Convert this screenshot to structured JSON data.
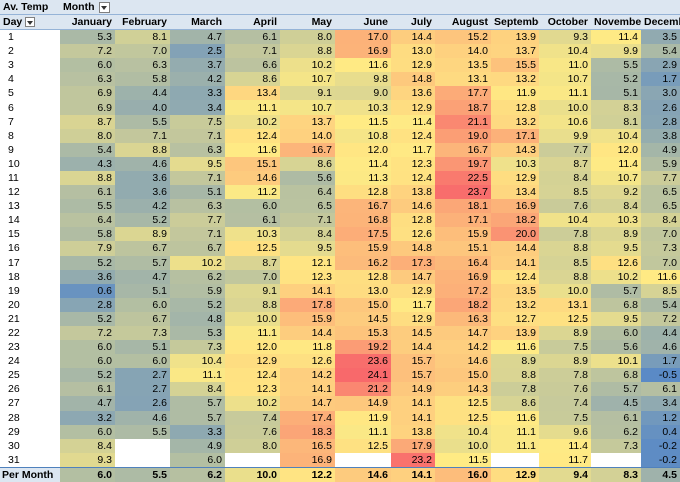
{
  "pivot": {
    "corner_label": "Av. Temp",
    "column_field_label": "Month",
    "row_field_label": "Day",
    "total_label": "Per Month",
    "months": [
      "January",
      "February",
      "March",
      "April",
      "May",
      "June",
      "July",
      "August",
      "September",
      "October",
      "November",
      "December"
    ],
    "days": [
      "1",
      "2",
      "3",
      "4",
      "5",
      "6",
      "7",
      "8",
      "9",
      "10",
      "11",
      "12",
      "13",
      "14",
      "15",
      "16",
      "17",
      "18",
      "19",
      "20",
      "21",
      "22",
      "23",
      "24",
      "25",
      "26",
      "27",
      "28",
      "29",
      "30",
      "31"
    ],
    "values": [
      [
        "5.3",
        "8.1",
        "4.7",
        "6.1",
        "8.0",
        "17.0",
        "14.4",
        "15.2",
        "13.9",
        "9.3",
        "11.4",
        "3.5"
      ],
      [
        "7.2",
        "7.0",
        "2.5",
        "7.1",
        "8.8",
        "16.9",
        "13.0",
        "14.0",
        "13.7",
        "10.4",
        "9.9",
        "5.4"
      ],
      [
        "6.0",
        "6.3",
        "3.7",
        "6.6",
        "10.2",
        "11.6",
        "12.9",
        "13.5",
        "15.5",
        "11.0",
        "5.5",
        "2.9"
      ],
      [
        "6.3",
        "5.8",
        "4.2",
        "8.6",
        "10.7",
        "9.8",
        "14.8",
        "13.1",
        "13.2",
        "10.7",
        "5.2",
        "1.7"
      ],
      [
        "6.9",
        "4.4",
        "3.3",
        "13.4",
        "9.1",
        "9.0",
        "13.6",
        "17.7",
        "11.9",
        "11.1",
        "5.1",
        "3.0"
      ],
      [
        "6.9",
        "4.0",
        "3.4",
        "11.1",
        "10.7",
        "10.3",
        "12.9",
        "18.7",
        "12.8",
        "10.0",
        "8.3",
        "2.6"
      ],
      [
        "8.7",
        "5.5",
        "7.5",
        "10.2",
        "13.7",
        "11.5",
        "11.4",
        "21.1",
        "13.2",
        "10.6",
        "8.1",
        "2.8"
      ],
      [
        "8.0",
        "7.1",
        "7.1",
        "12.4",
        "14.0",
        "10.8",
        "12.4",
        "19.0",
        "17.1",
        "9.9",
        "10.4",
        "3.8"
      ],
      [
        "5.4",
        "8.8",
        "6.3",
        "11.6",
        "16.7",
        "12.0",
        "11.7",
        "16.7",
        "14.3",
        "7.7",
        "12.0",
        "4.9"
      ],
      [
        "4.3",
        "4.6",
        "9.5",
        "15.1",
        "8.6",
        "11.4",
        "12.3",
        "19.7",
        "10.3",
        "8.7",
        "11.4",
        "5.9"
      ],
      [
        "8.8",
        "3.6",
        "7.1",
        "14.6",
        "5.6",
        "11.3",
        "12.4",
        "22.5",
        "12.9",
        "8.4",
        "10.7",
        "7.7"
      ],
      [
        "6.1",
        "3.6",
        "5.1",
        "11.2",
        "6.4",
        "12.8",
        "13.8",
        "23.7",
        "13.4",
        "8.5",
        "9.2",
        "6.5"
      ],
      [
        "5.5",
        "4.2",
        "6.3",
        "6.0",
        "6.5",
        "16.7",
        "14.6",
        "18.1",
        "16.9",
        "7.6",
        "8.4",
        "6.5"
      ],
      [
        "6.4",
        "5.2",
        "7.7",
        "6.1",
        "7.1",
        "16.8",
        "12.8",
        "17.1",
        "18.2",
        "10.4",
        "10.3",
        "8.4"
      ],
      [
        "5.8",
        "8.9",
        "7.1",
        "10.3",
        "8.4",
        "17.5",
        "12.6",
        "15.9",
        "20.0",
        "7.8",
        "8.9",
        "7.0"
      ],
      [
        "7.9",
        "6.7",
        "6.7",
        "12.5",
        "9.5",
        "15.9",
        "14.8",
        "15.1",
        "14.4",
        "8.8",
        "9.5",
        "7.3"
      ],
      [
        "5.2",
        "5.7",
        "10.2",
        "8.7",
        "12.1",
        "16.2",
        "17.3",
        "16.4",
        "14.1",
        "8.5",
        "12.6",
        "7.0"
      ],
      [
        "3.6",
        "4.7",
        "6.2",
        "7.0",
        "12.3",
        "12.8",
        "14.7",
        "16.9",
        "12.4",
        "8.8",
        "10.2",
        "11.6"
      ],
      [
        "0.6",
        "5.1",
        "5.9",
        "9.1",
        "14.1",
        "13.0",
        "12.9",
        "17.2",
        "13.5",
        "10.0",
        "5.7",
        "8.5"
      ],
      [
        "2.8",
        "6.0",
        "5.2",
        "8.8",
        "17.8",
        "15.0",
        "11.7",
        "18.2",
        "13.2",
        "13.1",
        "6.8",
        "5.4"
      ],
      [
        "5.2",
        "6.7",
        "4.8",
        "10.0",
        "15.9",
        "14.5",
        "12.9",
        "16.3",
        "12.7",
        "12.5",
        "9.5",
        "7.2"
      ],
      [
        "7.2",
        "7.3",
        "5.3",
        "11.1",
        "14.4",
        "15.3",
        "14.5",
        "14.7",
        "13.9",
        "8.9",
        "6.0",
        "4.4"
      ],
      [
        "6.0",
        "5.1",
        "7.3",
        "12.0",
        "11.8",
        "19.2",
        "14.4",
        "14.2",
        "11.6",
        "7.5",
        "5.6",
        "4.6"
      ],
      [
        "6.0",
        "6.0",
        "10.4",
        "12.9",
        "12.6",
        "23.6",
        "15.7",
        "14.6",
        "8.9",
        "8.9",
        "10.1",
        "1.7"
      ],
      [
        "5.2",
        "2.7",
        "11.1",
        "12.4",
        "14.2",
        "24.1",
        "15.7",
        "15.0",
        "8.8",
        "7.8",
        "6.8",
        "-0.5"
      ],
      [
        "6.1",
        "2.7",
        "8.4",
        "12.3",
        "14.1",
        "21.2",
        "14.9",
        "14.3",
        "7.8",
        "7.6",
        "5.7",
        "6.1"
      ],
      [
        "4.7",
        "2.6",
        "5.7",
        "10.2",
        "14.7",
        "14.9",
        "14.1",
        "12.5",
        "8.6",
        "7.4",
        "4.5",
        "3.4"
      ],
      [
        "3.2",
        "4.6",
        "5.7",
        "7.4",
        "17.4",
        "11.9",
        "14.1",
        "12.5",
        "11.6",
        "7.5",
        "6.1",
        "1.2"
      ],
      [
        "6.0",
        "5.5",
        "3.3",
        "7.6",
        "18.3",
        "11.1",
        "13.8",
        "10.4",
        "11.1",
        "9.6",
        "6.2",
        "0.4"
      ],
      [
        "8.4",
        "",
        "4.9",
        "8.0",
        "16.5",
        "12.5",
        "17.9",
        "10.0",
        "11.1",
        "11.4",
        "7.3",
        "-0.2"
      ],
      [
        "9.3",
        "",
        "6.0",
        "",
        "16.9",
        "",
        "23.2",
        "11.5",
        "",
        "11.7",
        "",
        "-0.2"
      ]
    ],
    "totals": [
      "6.0",
      "5.5",
      "6.2",
      "10.0",
      "12.2",
      "14.6",
      "14.1",
      "16.0",
      "12.9",
      "9.4",
      "8.3",
      "4.5"
    ]
  },
  "scale_colors": {
    "low": "#5a8ac6",
    "mid": "#ffeb84",
    "high": "#f8696b"
  }
}
